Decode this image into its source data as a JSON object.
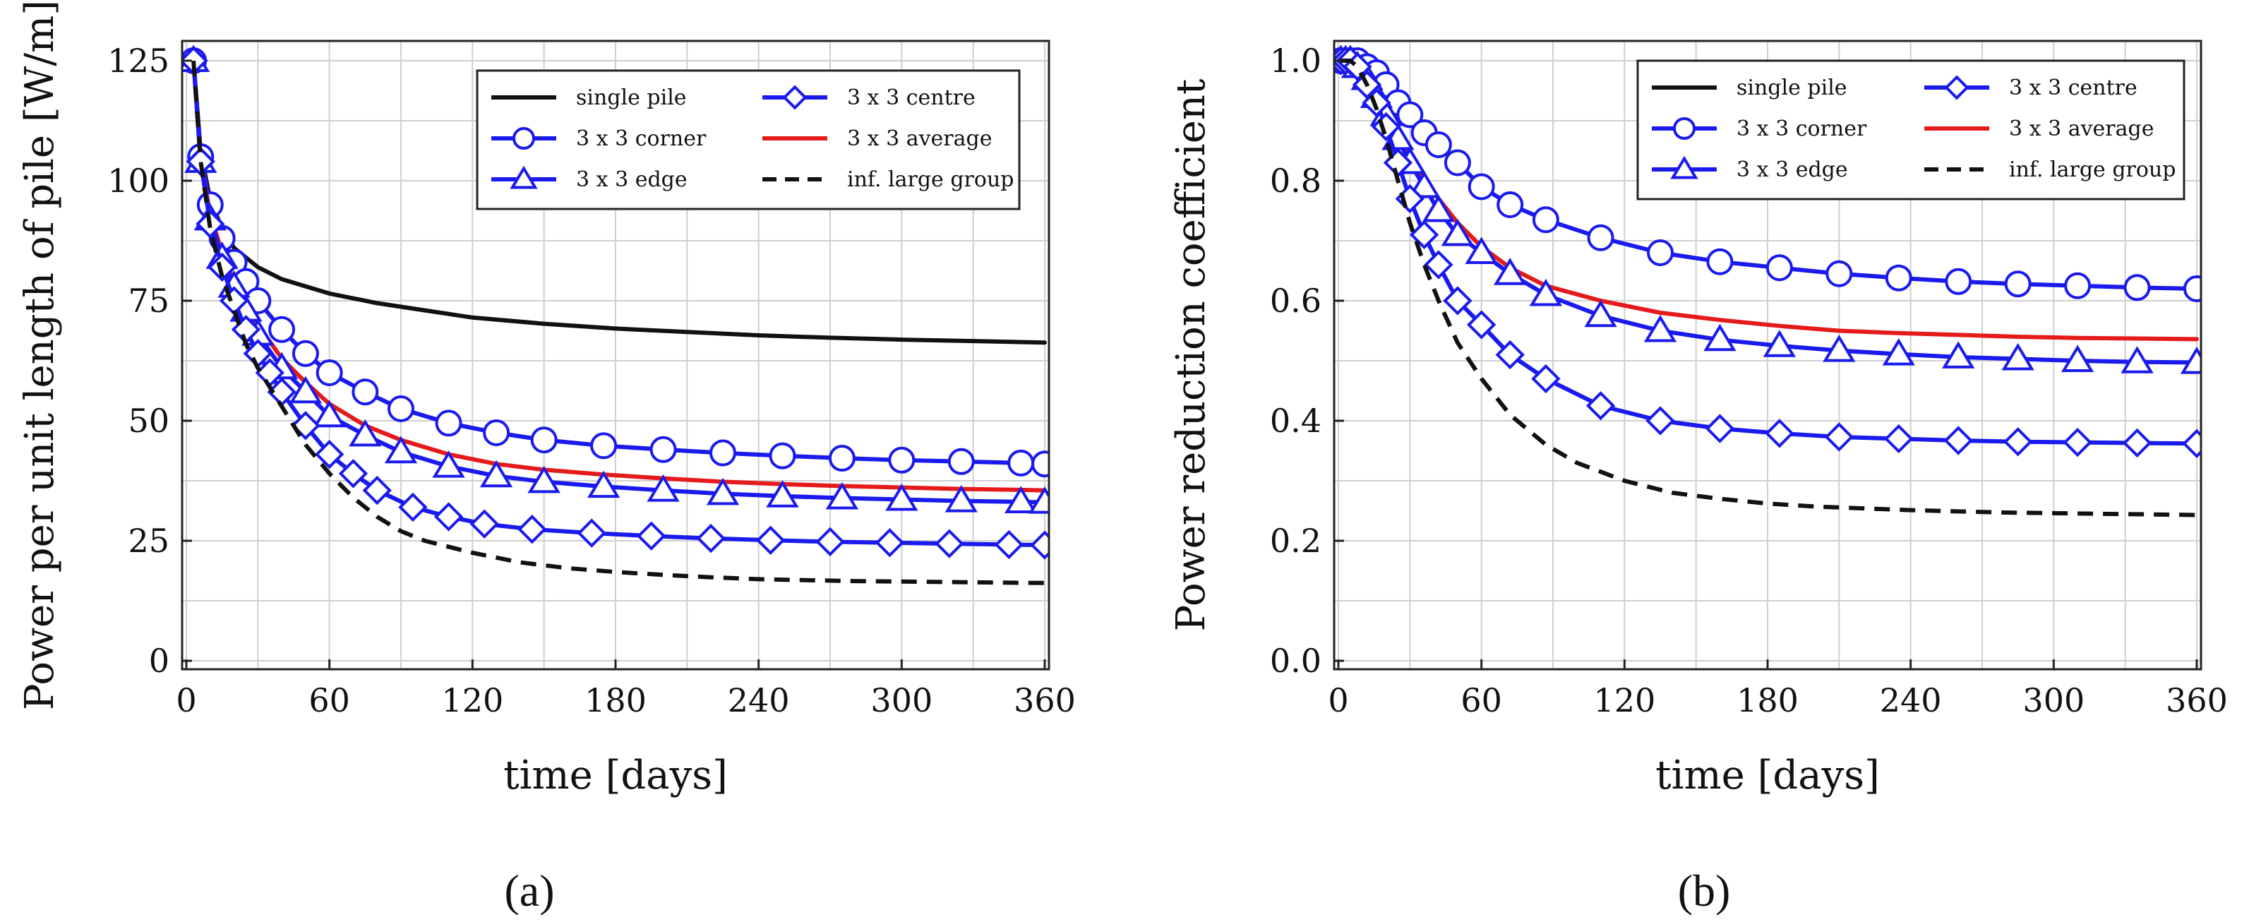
{
  "chart_data": [
    {
      "type": "line",
      "panel_label": "(a)",
      "xlabel": "time [days]",
      "ylabel": "Power per unit length of pile [W/m]",
      "xlim": [
        0,
        360
      ],
      "ylim": [
        0,
        125
      ],
      "xticks": [
        0,
        60,
        120,
        180,
        240,
        300,
        360
      ],
      "yticks": [
        0,
        25,
        50,
        75,
        100,
        125
      ],
      "xtick_labels": [
        "0",
        "60",
        "120",
        "180",
        "240",
        "300",
        "360"
      ],
      "ytick_labels": [
        "0",
        "25",
        "50",
        "75",
        "100",
        "125"
      ],
      "grid": true,
      "legend_position": "top-right",
      "legend": [
        {
          "label": "single pile",
          "color": "#111111",
          "dash": "solid",
          "marker": "none"
        },
        {
          "label": "3 x 3 centre",
          "color": "#1a1aee",
          "dash": "solid",
          "marker": "diamond"
        },
        {
          "label": "3 x 3 corner",
          "color": "#1a1aee",
          "dash": "solid",
          "marker": "circle"
        },
        {
          "label": "3 x 3 average",
          "color": "#e51a1a",
          "dash": "solid",
          "marker": "none"
        },
        {
          "label": "3 x 3 edge",
          "color": "#1a1aee",
          "dash": "solid",
          "marker": "triangle"
        },
        {
          "label": "inf. large group",
          "color": "#111111",
          "dash": "dashed",
          "marker": "none"
        }
      ],
      "series": [
        {
          "name": "single pile",
          "color": "#111111",
          "dash": "solid",
          "marker": "none",
          "x": [
            3,
            6,
            10,
            15,
            20,
            30,
            40,
            50,
            60,
            80,
            100,
            120,
            150,
            180,
            210,
            240,
            270,
            300,
            330,
            360
          ],
          "y": [
            125,
            106,
            96,
            90,
            86,
            82,
            79.5,
            78,
            76.5,
            74.5,
            73,
            71.5,
            70.2,
            69.2,
            68.5,
            67.8,
            67.3,
            66.9,
            66.6,
            66.3
          ]
        },
        {
          "name": "3 x 3 corner",
          "color": "#1a1aee",
          "dash": "solid",
          "marker": "circle",
          "x": [
            3,
            6,
            10,
            15,
            20,
            25,
            30,
            40,
            50,
            60,
            75,
            90,
            110,
            130,
            150,
            175,
            200,
            225,
            250,
            275,
            300,
            325,
            350,
            360
          ],
          "y": [
            125,
            105,
            95,
            88,
            83,
            79,
            75,
            69,
            64,
            60,
            56,
            52.5,
            49.5,
            47.5,
            46,
            44.8,
            44,
            43.3,
            42.7,
            42.2,
            41.8,
            41.5,
            41.2,
            41
          ]
        },
        {
          "name": "3 x 3 average",
          "color": "#e51a1a",
          "dash": "solid",
          "marker": "none",
          "x": [
            3,
            6,
            10,
            15,
            20,
            25,
            30,
            40,
            50,
            60,
            75,
            90,
            110,
            130,
            150,
            175,
            200,
            225,
            250,
            275,
            300,
            325,
            350,
            360
          ],
          "y": [
            125,
            104,
            93,
            85,
            79,
            74,
            70,
            63,
            58,
            53.5,
            49,
            46,
            43,
            41,
            39.8,
            38.8,
            38,
            37.3,
            36.8,
            36.4,
            36.1,
            35.8,
            35.6,
            35.5
          ]
        },
        {
          "name": "3 x 3 edge",
          "color": "#1a1aee",
          "dash": "solid",
          "marker": "triangle",
          "x": [
            3,
            6,
            10,
            15,
            20,
            25,
            30,
            40,
            50,
            60,
            75,
            90,
            110,
            130,
            150,
            175,
            200,
            225,
            250,
            275,
            300,
            325,
            350,
            360
          ],
          "y": [
            125,
            104,
            92,
            84,
            78,
            73,
            68,
            61,
            56,
            51,
            47,
            43.5,
            40.5,
            38.5,
            37.3,
            36.3,
            35.5,
            34.8,
            34.3,
            33.9,
            33.6,
            33.3,
            33.1,
            33
          ]
        },
        {
          "name": "3 x 3 centre",
          "color": "#1a1aee",
          "dash": "solid",
          "marker": "diamond",
          "x": [
            3,
            6,
            10,
            15,
            20,
            25,
            30,
            35,
            40,
            50,
            60,
            70,
            80,
            95,
            110,
            125,
            145,
            170,
            195,
            220,
            245,
            270,
            295,
            320,
            345,
            360
          ],
          "y": [
            125,
            104,
            91,
            82,
            75,
            69,
            64,
            60,
            56,
            49,
            43,
            39,
            35.5,
            32,
            30,
            28.5,
            27.4,
            26.6,
            26,
            25.5,
            25.1,
            24.8,
            24.6,
            24.4,
            24.2,
            24.1
          ]
        },
        {
          "name": "inf. large group",
          "color": "#111111",
          "dash": "dashed",
          "marker": "none",
          "x": [
            3,
            6,
            10,
            15,
            20,
            25,
            30,
            35,
            40,
            50,
            60,
            70,
            80,
            90,
            100,
            120,
            140,
            160,
            180,
            200,
            220,
            240,
            260,
            280,
            300,
            320,
            340,
            360
          ],
          "y": [
            125,
            104,
            90,
            80,
            73,
            66,
            61,
            57,
            53,
            45,
            39,
            34,
            30,
            27,
            25,
            22.5,
            20.5,
            19.3,
            18.5,
            17.9,
            17.4,
            17,
            16.8,
            16.6,
            16.5,
            16.4,
            16.3,
            16.2
          ]
        }
      ]
    },
    {
      "type": "line",
      "panel_label": "(b)",
      "xlabel": "time [days]",
      "ylabel": "Power reduction coefficient",
      "xlim": [
        0,
        360
      ],
      "ylim": [
        0,
        1
      ],
      "xticks": [
        0,
        60,
        120,
        180,
        240,
        300,
        360
      ],
      "yticks": [
        0,
        0.2,
        0.4,
        0.6,
        0.8,
        1.0
      ],
      "xtick_labels": [
        "0",
        "60",
        "120",
        "180",
        "240",
        "300",
        "360"
      ],
      "ytick_labels": [
        "0.0",
        "0.2",
        "0.4",
        "0.6",
        "0.8",
        "1.0"
      ],
      "grid": true,
      "legend_position": "top-right",
      "legend": [
        {
          "label": "single pile",
          "color": "#111111",
          "dash": "solid",
          "marker": "none"
        },
        {
          "label": "3 x 3 centre",
          "color": "#1a1aee",
          "dash": "solid",
          "marker": "diamond"
        },
        {
          "label": "3 x 3 corner",
          "color": "#1a1aee",
          "dash": "solid",
          "marker": "circle"
        },
        {
          "label": "3 x 3 average",
          "color": "#e51a1a",
          "dash": "solid",
          "marker": "none"
        },
        {
          "label": "3 x 3 edge",
          "color": "#1a1aee",
          "dash": "solid",
          "marker": "triangle"
        },
        {
          "label": "inf. large group",
          "color": "#111111",
          "dash": "dashed",
          "marker": "none"
        }
      ],
      "series": [
        {
          "name": "3 x 3 corner",
          "color": "#1a1aee",
          "dash": "solid",
          "marker": "circle",
          "x": [
            1,
            3,
            5,
            8,
            12,
            16,
            20,
            25,
            30,
            36,
            42,
            50,
            60,
            72,
            87,
            110,
            135,
            160,
            185,
            210,
            235,
            260,
            285,
            310,
            335,
            360
          ],
          "y": [
            1.0,
            1.0,
            1.0,
            1.0,
            0.99,
            0.98,
            0.96,
            0.93,
            0.91,
            0.88,
            0.86,
            0.83,
            0.79,
            0.76,
            0.735,
            0.705,
            0.68,
            0.665,
            0.655,
            0.645,
            0.638,
            0.632,
            0.628,
            0.625,
            0.622,
            0.62
          ]
        },
        {
          "name": "3 x 3 average",
          "color": "#e51a1a",
          "dash": "solid",
          "marker": "none",
          "x": [
            1,
            3,
            5,
            8,
            12,
            16,
            20,
            25,
            30,
            36,
            42,
            50,
            60,
            72,
            87,
            110,
            135,
            160,
            185,
            210,
            235,
            260,
            285,
            310,
            335,
            360
          ],
          "y": [
            1.0,
            1.0,
            1.0,
            0.99,
            0.97,
            0.95,
            0.92,
            0.88,
            0.84,
            0.8,
            0.77,
            0.73,
            0.69,
            0.655,
            0.625,
            0.6,
            0.58,
            0.568,
            0.558,
            0.55,
            0.546,
            0.543,
            0.54,
            0.538,
            0.537,
            0.536
          ]
        },
        {
          "name": "3 x 3 edge",
          "color": "#1a1aee",
          "dash": "solid",
          "marker": "triangle",
          "x": [
            1,
            3,
            5,
            8,
            12,
            16,
            20,
            25,
            30,
            36,
            42,
            50,
            60,
            72,
            87,
            110,
            135,
            160,
            185,
            210,
            235,
            260,
            285,
            310,
            335,
            360
          ],
          "y": [
            1.0,
            1.0,
            1.0,
            0.99,
            0.97,
            0.94,
            0.91,
            0.87,
            0.83,
            0.79,
            0.75,
            0.71,
            0.68,
            0.645,
            0.61,
            0.575,
            0.55,
            0.535,
            0.525,
            0.517,
            0.511,
            0.506,
            0.503,
            0.5,
            0.498,
            0.497
          ]
        },
        {
          "name": "3 x 3 centre",
          "color": "#1a1aee",
          "dash": "solid",
          "marker": "diamond",
          "x": [
            1,
            3,
            5,
            8,
            12,
            16,
            20,
            25,
            30,
            36,
            42,
            50,
            60,
            72,
            87,
            110,
            135,
            160,
            185,
            210,
            235,
            260,
            285,
            310,
            335,
            360
          ],
          "y": [
            1.0,
            1.0,
            1.0,
            0.99,
            0.96,
            0.93,
            0.89,
            0.83,
            0.77,
            0.71,
            0.66,
            0.6,
            0.56,
            0.51,
            0.47,
            0.425,
            0.4,
            0.387,
            0.379,
            0.373,
            0.37,
            0.367,
            0.365,
            0.364,
            0.363,
            0.362
          ]
        },
        {
          "name": "inf. large group",
          "color": "#111111",
          "dash": "dashed",
          "marker": "none",
          "x": [
            1,
            3,
            5,
            8,
            12,
            16,
            20,
            25,
            30,
            36,
            42,
            50,
            60,
            72,
            87,
            100,
            120,
            140,
            160,
            180,
            200,
            220,
            240,
            260,
            280,
            300,
            320,
            340,
            360
          ],
          "y": [
            1.0,
            1.0,
            1.0,
            0.99,
            0.96,
            0.92,
            0.87,
            0.8,
            0.73,
            0.66,
            0.6,
            0.53,
            0.47,
            0.41,
            0.36,
            0.33,
            0.3,
            0.28,
            0.27,
            0.262,
            0.257,
            0.254,
            0.251,
            0.249,
            0.247,
            0.246,
            0.245,
            0.244,
            0.243
          ]
        }
      ]
    }
  ]
}
